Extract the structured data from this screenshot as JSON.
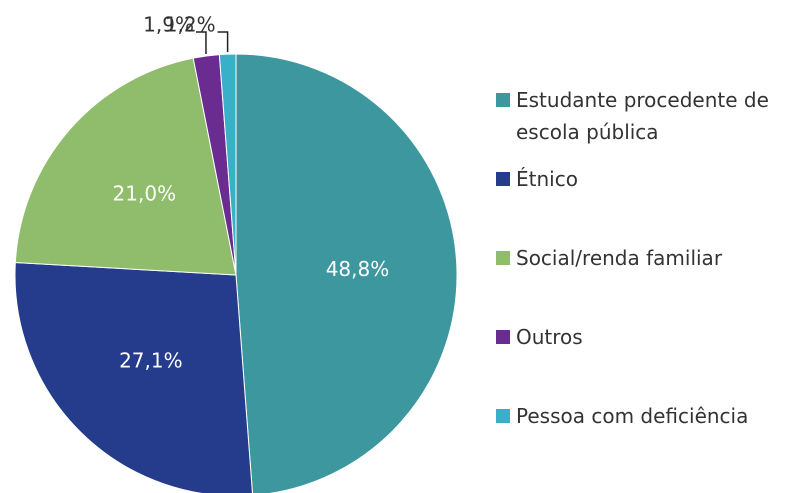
{
  "chart_data": {
    "type": "pie",
    "categories": [
      "Estudante procedente de escola pública",
      "Étnico",
      "Social/renda familiar",
      "Outros",
      "Pessoa com deficiência"
    ],
    "values": [
      48.8,
      27.1,
      21.0,
      1.9,
      1.2
    ],
    "value_labels": [
      "48,8%",
      "27,1%",
      "21,0%",
      "1,9%",
      "1,2%"
    ],
    "colors": [
      "#3d979e",
      "#253b8b",
      "#8fbd6b",
      "#6a2c91",
      "#3ab0c8"
    ],
    "legend": "right"
  }
}
